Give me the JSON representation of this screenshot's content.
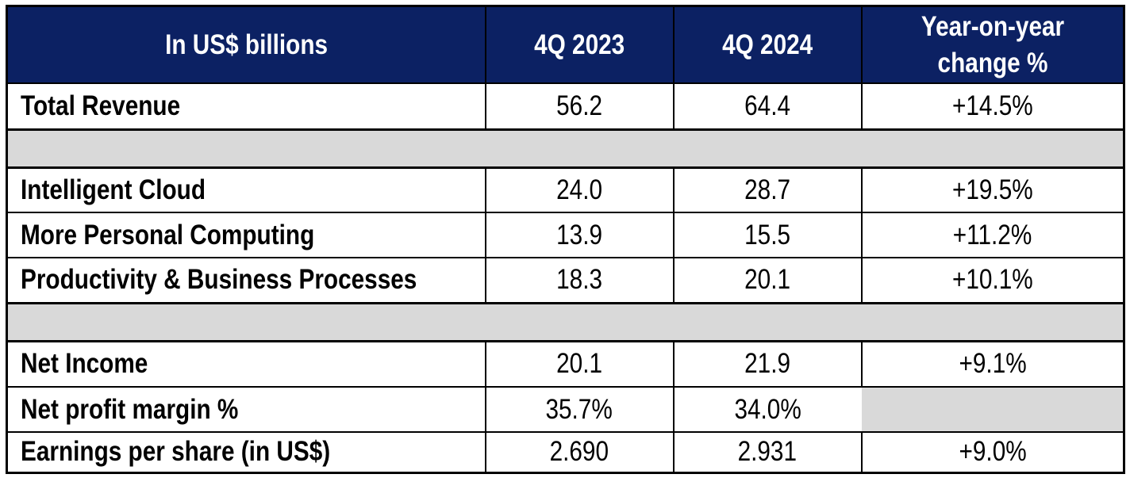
{
  "colors": {
    "header_bg": "#0c2163",
    "header_text": "#ffffff",
    "spacer_bg": "#d9d9d9",
    "body_text": "#000000",
    "border": "#000000",
    "row_bg": "#ffffff"
  },
  "table": {
    "header": {
      "metric": "In US$ billions",
      "q4_2023": "4Q 2023",
      "q4_2024": "4Q 2024",
      "yoy": "Year-on-year change %"
    },
    "rows": [
      {
        "label": "Total Revenue",
        "v2023": "56.2",
        "v2024": "64.4",
        "yoy": "+14.5%"
      },
      {
        "label": "Intelligent Cloud",
        "v2023": "24.0",
        "v2024": "28.7",
        "yoy": "+19.5%"
      },
      {
        "label": "More Personal Computing",
        "v2023": "13.9",
        "v2024": "15.5",
        "yoy": "+11.2%"
      },
      {
        "label": "Productivity & Business Processes",
        "v2023": "18.3",
        "v2024": "20.1",
        "yoy": "+10.1%"
      },
      {
        "label": "Net Income",
        "v2023": "20.1",
        "v2024": "21.9",
        "yoy": "+9.1%"
      },
      {
        "label": "Net profit margin %",
        "v2023": "35.7%",
        "v2024": "34.0%",
        "yoy": ""
      },
      {
        "label": "Earnings per share (in US$)",
        "v2023": "2.690",
        "v2024": "2.931",
        "yoy": "+9.0%"
      }
    ]
  },
  "chart_data": {
    "type": "table",
    "title": "In US$ billions",
    "columns": [
      "In US$ billions",
      "4Q 2023",
      "4Q 2024",
      "Year-on-year change %"
    ],
    "rows": [
      [
        "Total Revenue",
        56.2,
        64.4,
        "+14.5%"
      ],
      [
        "Intelligent Cloud",
        24.0,
        28.7,
        "+19.5%"
      ],
      [
        "More Personal Computing",
        13.9,
        15.5,
        "+11.2%"
      ],
      [
        "Productivity & Business Processes",
        18.3,
        20.1,
        "+10.1%"
      ],
      [
        "Net Income",
        20.1,
        21.9,
        "+9.1%"
      ],
      [
        "Net profit margin %",
        "35.7%",
        "34.0%",
        ""
      ],
      [
        "Earnings per share (in US$)",
        2.69,
        2.931,
        "+9.0%"
      ]
    ],
    "layout_hints": {
      "header_bg": "#0c2163",
      "spacer_rows_after": [
        "Total Revenue",
        "Productivity & Business Processes"
      ],
      "empty_cell": "Net profit margin % / Year-on-year change %"
    }
  }
}
